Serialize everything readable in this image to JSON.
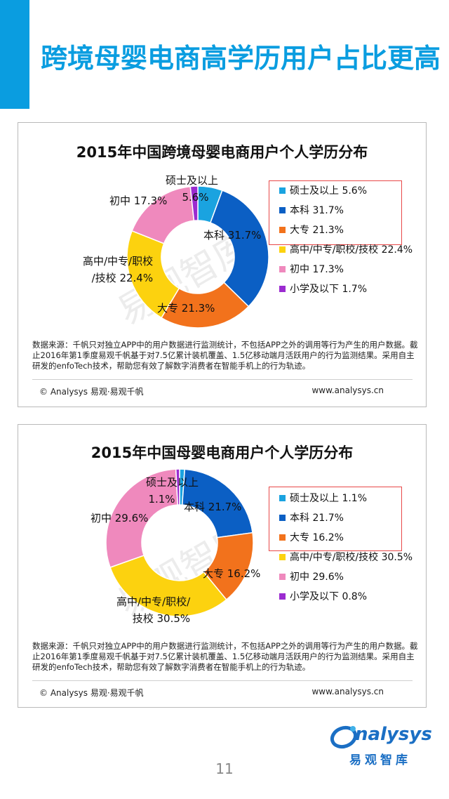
{
  "page": {
    "title": "跨境母婴电商高学历用户占比更高",
    "page_number": "11",
    "accent_color": "#0a9de0"
  },
  "brand": {
    "name": "nalysys",
    "subtitle": "易观智库"
  },
  "charts": [
    {
      "title": "2015年中国跨境母婴电商用户个人学历分布",
      "note": "数据来源：千帆只对独立APP中的用户数据进行监测统计，不包括APP之外的调用等行为产生的用户数据。截止2016年第1季度易观千帆基于对7.5亿累计装机覆盖、1.5亿移动端月活跃用户的行为监测结果。采用自主研发的enfoTech技术，帮助您有效了解数字消费者在智能手机上的行为轨迹。",
      "copyright": "© Analysys 易观·易观千帆",
      "site": "www.analysys.cn",
      "watermark": "易观智库",
      "slice_labels": [
        {
          "line1": "硕士及以上",
          "line2": "5.6%"
        },
        {
          "line1": "本科  31.7%",
          "line2": ""
        },
        {
          "line1": "大专  21.3%",
          "line2": ""
        },
        {
          "line1": "高中/中专/职校",
          "line2": "/技校  22.4%"
        },
        {
          "line1": "初中  17.3%",
          "line2": ""
        },
        {
          "line1": "",
          "line2": ""
        }
      ],
      "legend": [
        "硕士及以上  5.6%",
        "本科  31.7%",
        "大专  21.3%",
        "高中/中专/职校/技校  22.4%",
        "初中  17.3%",
        "小学及以下  1.7%"
      ]
    },
    {
      "title": "2015年中国母婴电商用户个人学历分布",
      "note": "数据来源：千帆只对独立APP中的用户数据进行监测统计，不包括APP之外的调用等行为产生的用户数据。截止2016年第1季度易观千帆基于对7.5亿累计装机覆盖、1.5亿移动端月活跃用户的行为监测结果。采用自主研发的enfoTech技术，帮助您有效了解数字消费者在智能手机上的行为轨迹。",
      "copyright": "© Analysys 易观·易观千帆",
      "site": "www.analysys.cn",
      "watermark": "易观智库",
      "slice_labels": [
        {
          "line1": "硕士及以上",
          "line2": "1.1%"
        },
        {
          "line1": "本科  21.7%",
          "line2": ""
        },
        {
          "line1": "大专  16.2%",
          "line2": ""
        },
        {
          "line1": "高中/中专/职校/",
          "line2": "技校  30.5%"
        },
        {
          "line1": "初中  29.6%",
          "line2": ""
        },
        {
          "line1": "",
          "line2": ""
        }
      ],
      "legend": [
        "硕士及以上  1.1%",
        "本科  21.7%",
        "大专  16.2%",
        "高中/中专/职校/技校  30.5%",
        "初中  29.6%",
        "小学及以下  0.8%"
      ]
    }
  ],
  "chart_data": [
    {
      "type": "pie",
      "title": "2015年中国跨境母婴电商用户个人学历分布",
      "categories": [
        "硕士及以上",
        "本科",
        "大专",
        "高中/中专/职校/技校",
        "初中",
        "小学及以下"
      ],
      "values": [
        5.6,
        31.7,
        21.3,
        22.4,
        17.3,
        1.7
      ],
      "unit": "%",
      "colors": [
        "#1aa3e0",
        "#0b5fc4",
        "#f2721c",
        "#fcd20f",
        "#ef89bd",
        "#9b2bd0"
      ],
      "legend_position": "right"
    },
    {
      "type": "pie",
      "title": "2015年中国母婴电商用户个人学历分布",
      "categories": [
        "硕士及以上",
        "本科",
        "大专",
        "高中/中专/职校/技校",
        "初中",
        "小学及以下"
      ],
      "values": [
        1.1,
        21.7,
        16.2,
        30.5,
        29.6,
        0.8
      ],
      "unit": "%",
      "colors": [
        "#1aa3e0",
        "#0b5fc4",
        "#f2721c",
        "#fcd20f",
        "#ef89bd",
        "#9b2bd0"
      ],
      "legend_position": "right"
    }
  ]
}
